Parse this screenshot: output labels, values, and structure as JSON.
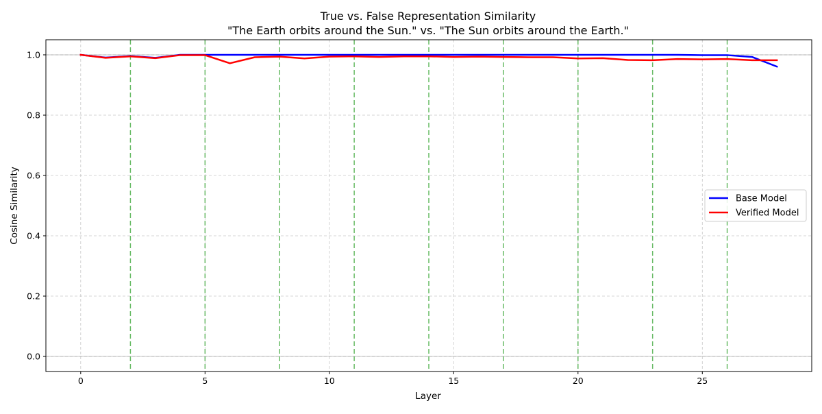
{
  "chart_data": {
    "type": "line",
    "title": "True vs. False Representation Similarity",
    "subtitle": "\"The Earth orbits around the Sun.\" vs. \"The Sun orbits around the Earth.\"",
    "xlabel": "Layer",
    "ylabel": "Cosine Similarity",
    "xlim": [
      -1.4,
      29.4
    ],
    "ylim": [
      -0.05,
      1.05
    ],
    "xticks": [
      0,
      5,
      10,
      15,
      20,
      25
    ],
    "yticks": [
      0.0,
      0.2,
      0.4,
      0.6,
      0.8,
      1.0
    ],
    "ytick_labels": [
      "0.0",
      "0.2",
      "0.4",
      "0.6",
      "0.8",
      "1.0"
    ],
    "grid": true,
    "legend_position": "center-right",
    "reference_hlines": [
      0.0,
      1.0
    ],
    "vlines": [
      2,
      5,
      8,
      11,
      14,
      17,
      20,
      23,
      26
    ],
    "colors": {
      "base": "#0000ff",
      "verified": "#ff0000",
      "vline": "#4daf4a",
      "grid": "#b0b0b0"
    },
    "x": [
      0,
      1,
      2,
      3,
      4,
      5,
      6,
      7,
      8,
      9,
      10,
      11,
      12,
      13,
      14,
      15,
      16,
      17,
      18,
      19,
      20,
      21,
      22,
      23,
      24,
      25,
      26,
      27,
      28
    ],
    "series": [
      {
        "name": "Base Model",
        "color": "#0000ff",
        "values": [
          1.0,
          0.991,
          0.996,
          0.99,
          1.0,
          1.0,
          1.0,
          1.0,
          1.0,
          1.0,
          1.0,
          1.0,
          1.0,
          1.0,
          1.0,
          1.0,
          1.0,
          1.0,
          1.0,
          1.0,
          1.0,
          1.0,
          1.0,
          1.0,
          1.0,
          0.999,
          0.999,
          0.993,
          0.961
        ]
      },
      {
        "name": "Verified Model",
        "color": "#ff0000",
        "values": [
          1.0,
          0.99,
          0.995,
          0.989,
          0.999,
          0.999,
          0.972,
          0.992,
          0.994,
          0.988,
          0.994,
          0.995,
          0.993,
          0.995,
          0.995,
          0.993,
          0.994,
          0.993,
          0.992,
          0.992,
          0.988,
          0.989,
          0.983,
          0.982,
          0.986,
          0.985,
          0.986,
          0.982,
          0.982
        ]
      }
    ]
  }
}
